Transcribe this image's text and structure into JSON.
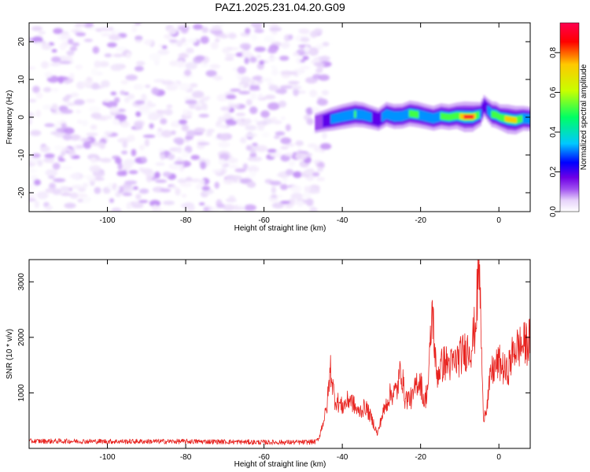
{
  "title": "PAZ1.2025.231.04.20.G09",
  "chart_data": [
    {
      "type": "heatmap",
      "xlabel": "Height of straight line (km)",
      "ylabel": "Frequency (Hz)",
      "xlim": [
        -120,
        8
      ],
      "ylim": [
        -25,
        25
      ],
      "xticks": [
        -100,
        -80,
        -60,
        -40,
        -20,
        0
      ],
      "yticks": [
        -20,
        -10,
        0,
        10,
        20
      ],
      "colorbar": {
        "label": "Normalized spectral amplitude",
        "range": [
          0,
          0.95
        ],
        "ticks": [
          0.0,
          0.2,
          0.4,
          0.6,
          0.8
        ],
        "colormap": [
          "#ffffff",
          "#e6d2fa",
          "#a050f0",
          "#6e00e6",
          "#0000ff",
          "#00c8ff",
          "#00ff64",
          "#c8ff00",
          "#ffc800",
          "#ff0000",
          "#ff0050"
        ]
      },
      "noise_region": {
        "x_range": [
          -120,
          -47
        ],
        "y_range": [
          -25,
          25
        ],
        "amplitude_range": [
          0.0,
          0.15
        ]
      },
      "signal_track": {
        "x": [
          -47,
          -45,
          -43,
          -40,
          -37,
          -35,
          -33,
          -31,
          -29,
          -27,
          -25,
          -23,
          -21,
          -19,
          -17,
          -15,
          -13,
          -11,
          -9,
          -7,
          -5,
          -4,
          -3,
          -2,
          -1,
          0,
          2,
          4,
          6,
          8
        ],
        "frequency": [
          -1.5,
          -1.0,
          -0.5,
          0.2,
          0.8,
          0.6,
          0.0,
          -0.6,
          0.8,
          0.2,
          0.3,
          1.0,
          0.7,
          0.2,
          -0.3,
          0.3,
          0.0,
          0.4,
          0.1,
          0.1,
          0.8,
          3.0,
          1.8,
          0.8,
          0.6,
          0.0,
          -0.5,
          -0.8,
          -0.3,
          -0.5
        ],
        "peak_amplitude": [
          0.2,
          0.3,
          0.45,
          0.55,
          0.6,
          0.55,
          0.45,
          0.4,
          0.5,
          0.55,
          0.55,
          0.6,
          0.6,
          0.55,
          0.55,
          0.6,
          0.6,
          0.65,
          0.95,
          0.9,
          0.5,
          0.3,
          0.45,
          0.6,
          0.65,
          0.6,
          0.85,
          0.8,
          0.55,
          0.5
        ]
      }
    },
    {
      "type": "line",
      "xlabel": "Height of straight line (km)",
      "ylabel": "SNR (10 * v/v)",
      "xlim": [
        -120,
        8
      ],
      "ylim": [
        0,
        3400
      ],
      "xticks": [
        -100,
        -80,
        -60,
        -40,
        -20,
        0
      ],
      "yticks": [
        1000,
        2000,
        3000
      ],
      "series": [
        {
          "color": "#e8231f",
          "x": [
            -120,
            -110,
            -100,
            -90,
            -80,
            -70,
            -60,
            -50,
            -47,
            -46,
            -45,
            -44,
            -43,
            -42,
            -40,
            -38,
            -36,
            -34,
            -32,
            -31,
            -30,
            -28,
            -26,
            -25,
            -24,
            -22,
            -21,
            -20,
            -19,
            -18,
            -17,
            -16,
            -15,
            -14,
            -12,
            -10,
            -8,
            -7,
            -6,
            -5,
            -4,
            -3,
            -2,
            0,
            2,
            4,
            6,
            8
          ],
          "y": [
            130,
            130,
            125,
            125,
            125,
            120,
            110,
            110,
            120,
            180,
            450,
            700,
            1450,
            900,
            750,
            900,
            650,
            750,
            450,
            250,
            550,
            950,
            1050,
            1450,
            900,
            900,
            1200,
            1200,
            800,
            1200,
            2550,
            1300,
            1450,
            1550,
            1500,
            1650,
            1800,
            1850,
            2200,
            3350,
            550,
            800,
            1350,
            1550,
            1350,
            1800,
            1850,
            1950
          ]
        }
      ]
    }
  ]
}
